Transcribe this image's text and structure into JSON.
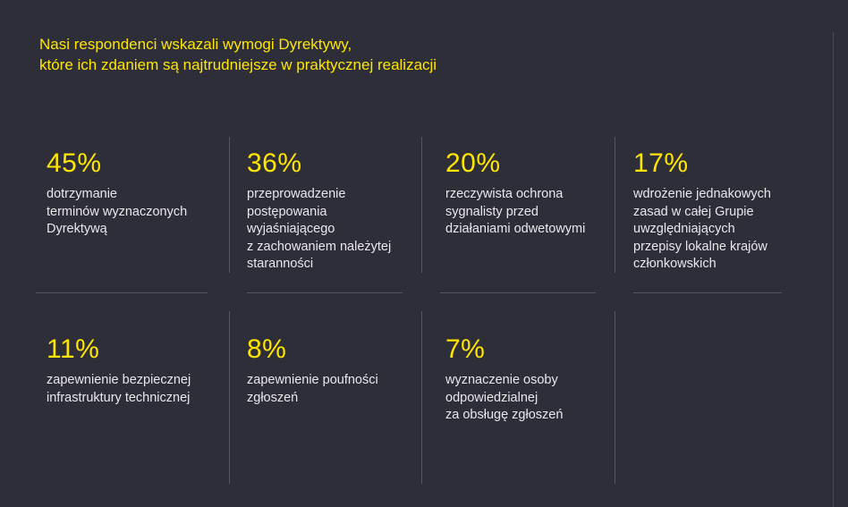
{
  "title": {
    "line1": "Nasi respondenci wskazali wymogi Dyrektywy,",
    "line2": "które ich zdaniem są najtrudniejsze w praktycznej realizacji"
  },
  "stats": [
    {
      "value": "45%",
      "label": "dotrzymanie\nterminów wyznaczonych\nDyrektywą"
    },
    {
      "value": "36%",
      "label": "przeprowadzenie\npostępowania\nwyjaśniającego\nz zachowaniem należytej\nstaranności"
    },
    {
      "value": "20%",
      "label": "rzeczywista ochrona\nsygnalisty przed\ndziałaniami odwetowymi"
    },
    {
      "value": "17%",
      "label": "wdrożenie jednakowych\nzasad w całej Grupie\nuwzględniających\nprzepisy lokalne krajów\nczłonkowskich"
    },
    {
      "value": "11%",
      "label": "zapewnienie bezpiecznej\ninfrastruktury technicznej"
    },
    {
      "value": "8%",
      "label": "zapewnienie poufności\nzgłoszeń"
    },
    {
      "value": "7%",
      "label": "wyznaczenie osoby\nodpowiedzialnej\nza obsługę zgłoszeń"
    }
  ],
  "colors": {
    "background": "#2e2e38",
    "accent": "#ffe600",
    "text": "#e8e8ec",
    "divider": "#55555f"
  }
}
